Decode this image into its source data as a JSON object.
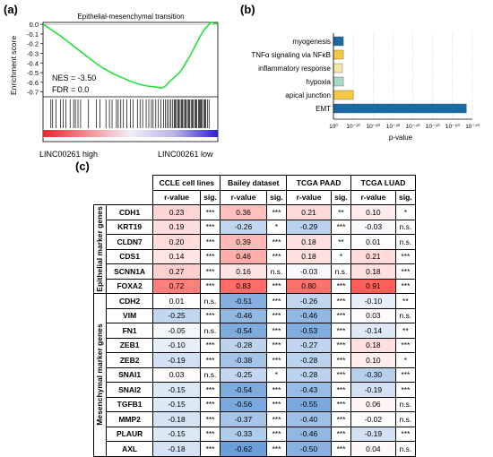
{
  "panel_labels": {
    "a": "(a)",
    "b": "(b)",
    "c": "(c)"
  },
  "chart_data": [
    {
      "type": "line",
      "title": "Epithelial-mesenchymal transition",
      "ylabel": "Enrichment score",
      "yticks": [
        "0.0",
        "-0.1",
        "-0.2",
        "-0.3",
        "-0.4",
        "-0.5",
        "-0.6",
        "-0.7"
      ],
      "ylim": [
        -0.75,
        0.02
      ],
      "annotations": [
        "NES = -3.50",
        "FDR = 0.0"
      ],
      "bottom_labels": [
        "LINC00261 high",
        "LINC00261 low"
      ],
      "line_color": "#22e03a",
      "curve": {
        "x": [
          0,
          0.02,
          0.05,
          0.1,
          0.15,
          0.2,
          0.25,
          0.3,
          0.35,
          0.4,
          0.45,
          0.5,
          0.55,
          0.6,
          0.65,
          0.68,
          0.7,
          0.72,
          0.75,
          0.78,
          0.8,
          0.82,
          0.84,
          0.86,
          0.88,
          0.9,
          0.92,
          0.94,
          0.96,
          0.98,
          1.0
        ],
        "y": [
          0.0,
          -0.02,
          -0.06,
          -0.12,
          -0.19,
          -0.26,
          -0.33,
          -0.4,
          -0.46,
          -0.51,
          -0.55,
          -0.59,
          -0.62,
          -0.64,
          -0.65,
          -0.66,
          -0.64,
          -0.6,
          -0.55,
          -0.5,
          -0.45,
          -0.39,
          -0.33,
          -0.26,
          -0.19,
          -0.12,
          -0.06,
          -0.02,
          0.02,
          0.01,
          0.0
        ]
      },
      "hits": [
        0.045,
        0.055,
        0.075,
        0.1,
        0.115,
        0.13,
        0.155,
        0.175,
        0.185,
        0.2,
        0.215,
        0.26,
        0.305,
        0.325,
        0.36,
        0.38,
        0.395,
        0.42,
        0.43,
        0.445,
        0.46,
        0.48,
        0.5,
        0.515,
        0.54,
        0.555,
        0.57,
        0.59,
        0.605,
        0.62,
        0.63,
        0.645,
        0.66,
        0.675,
        0.69,
        0.7,
        0.71,
        0.72,
        0.73,
        0.74,
        0.75,
        0.755,
        0.76,
        0.77,
        0.775,
        0.78,
        0.79,
        0.795,
        0.8,
        0.81,
        0.815,
        0.82,
        0.83,
        0.835,
        0.84,
        0.85,
        0.855,
        0.86,
        0.87,
        0.875,
        0.88,
        0.89,
        0.895,
        0.9,
        0.905,
        0.91,
        0.92,
        0.925,
        0.93,
        0.94,
        0.95
      ]
    },
    {
      "type": "bar",
      "orientation": "horizontal",
      "categories": [
        "myogenesis",
        "TNFα signaling via NFκB",
        "inflammatory response",
        "hypoxia",
        "apical junction",
        "EMT"
      ],
      "values_log10_p": [
        5,
        5,
        4.5,
        5,
        10,
        67
      ],
      "colors": [
        "#1a6aa5",
        "#f5c842",
        "#f7e7a6",
        "#a8d9c8",
        "#f5c842",
        "#1a6aa5"
      ],
      "xlabel": "p-value",
      "xscale": "log-reverse",
      "xticks": [
        "10⁰",
        "10⁻¹⁰",
        "10⁻²⁰",
        "10⁻³⁰",
        "10⁻⁴⁰",
        "10⁻⁵⁰",
        "10⁻⁶⁰",
        "10⁻⁷⁰"
      ],
      "xlim": [
        0,
        70
      ]
    },
    {
      "type": "table",
      "column_groups": [
        "CCLE cell lines",
        "Bailey dataset",
        "TCGA PAAD",
        "TCGA LUAD"
      ],
      "subheaders": [
        "r-value",
        "sig."
      ],
      "row_groups": [
        {
          "name": "Epithelial marker genes",
          "rows": [
            {
              "gene": "CDH1",
              "cells": [
                [
                  "0.23",
                  "***"
                ],
                [
                  "0.36",
                  "***"
                ],
                [
                  "0.21",
                  "**"
                ],
                [
                  "0.10",
                  "*"
                ]
              ]
            },
            {
              "gene": "KRT19",
              "cells": [
                [
                  "0.19",
                  "***"
                ],
                [
                  "-0.26",
                  "*"
                ],
                [
                  "-0.29",
                  "***"
                ],
                [
                  "-0.03",
                  "n.s."
                ]
              ]
            },
            {
              "gene": "CLDN7",
              "cells": [
                [
                  "0.20",
                  "***"
                ],
                [
                  "0.39",
                  "***"
                ],
                [
                  "0.18",
                  "**"
                ],
                [
                  "0.01",
                  "n.s."
                ]
              ]
            },
            {
              "gene": "CDS1",
              "cells": [
                [
                  "0.14",
                  "***"
                ],
                [
                  "0.46",
                  "***"
                ],
                [
                  "0.18",
                  "*"
                ],
                [
                  "0.21",
                  "***"
                ]
              ]
            },
            {
              "gene": "SCNN1A",
              "cells": [
                [
                  "0.27",
                  "***"
                ],
                [
                  "0.16",
                  "n.s."
                ],
                [
                  "-0.03",
                  "n.s."
                ],
                [
                  "0.18",
                  "***"
                ]
              ]
            },
            {
              "gene": "FOXA2",
              "cells": [
                [
                  "0.72",
                  "***"
                ],
                [
                  "0.83",
                  "***"
                ],
                [
                  "0.80",
                  "***"
                ],
                [
                  "0.91",
                  "***"
                ]
              ]
            }
          ]
        },
        {
          "name": "Mesenchymal marker genes",
          "rows": [
            {
              "gene": "CDH2",
              "cells": [
                [
                  "0.01",
                  "n.s."
                ],
                [
                  "-0.51",
                  "***"
                ],
                [
                  "-0.26",
                  "***"
                ],
                [
                  "-0.10",
                  "**"
                ]
              ]
            },
            {
              "gene": "VIM",
              "cells": [
                [
                  "-0.25",
                  "***"
                ],
                [
                  "-0.46",
                  "***"
                ],
                [
                  "-0.46",
                  "***"
                ],
                [
                  "0.03",
                  "n.s."
                ]
              ]
            },
            {
              "gene": "FN1",
              "cells": [
                [
                  "-0.05",
                  "n.s."
                ],
                [
                  "-0.54",
                  "***"
                ],
                [
                  "-0.53",
                  "***"
                ],
                [
                  "-0.14",
                  "**"
                ]
              ]
            },
            {
              "gene": "ZEB1",
              "cells": [
                [
                  "-0.10",
                  "***"
                ],
                [
                  "-0.28",
                  "***"
                ],
                [
                  "-0.27",
                  "***"
                ],
                [
                  "0.18",
                  "***"
                ]
              ]
            },
            {
              "gene": "ZEB2",
              "cells": [
                [
                  "-0.19",
                  "***"
                ],
                [
                  "-0.38",
                  "***"
                ],
                [
                  "-0.28",
                  "***"
                ],
                [
                  "0.10",
                  "*"
                ]
              ]
            },
            {
              "gene": "SNAI1",
              "cells": [
                [
                  "0.03",
                  "n.s."
                ],
                [
                  "-0.25",
                  "*"
                ],
                [
                  "-0.28",
                  "***"
                ],
                [
                  "-0.30",
                  "***"
                ]
              ]
            },
            {
              "gene": "SNAI2",
              "cells": [
                [
                  "-0.15",
                  "***"
                ],
                [
                  "-0.54",
                  "***"
                ],
                [
                  "-0.43",
                  "***"
                ],
                [
                  "-0.19",
                  "***"
                ]
              ]
            },
            {
              "gene": "TGFB1",
              "cells": [
                [
                  "-0.15",
                  "***"
                ],
                [
                  "-0.56",
                  "***"
                ],
                [
                  "-0.55",
                  "***"
                ],
                [
                  "0.06",
                  "n.s."
                ]
              ]
            },
            {
              "gene": "MMP2",
              "cells": [
                [
                  "-0.18",
                  "***"
                ],
                [
                  "-0.37",
                  "***"
                ],
                [
                  "-0.40",
                  "***"
                ],
                [
                  "-0.02",
                  "n.s."
                ]
              ]
            },
            {
              "gene": "PLAUR",
              "cells": [
                [
                  "-0.15",
                  "***"
                ],
                [
                  "-0.33",
                  "***"
                ],
                [
                  "-0.46",
                  "***"
                ],
                [
                  "-0.19",
                  "***"
                ]
              ]
            },
            {
              "gene": "AXL",
              "cells": [
                [
                  "-0.18",
                  "***"
                ],
                [
                  "-0.62",
                  "***"
                ],
                [
                  "-0.50",
                  "***"
                ],
                [
                  "0.04",
                  "n.s."
                ]
              ]
            }
          ]
        }
      ]
    }
  ]
}
